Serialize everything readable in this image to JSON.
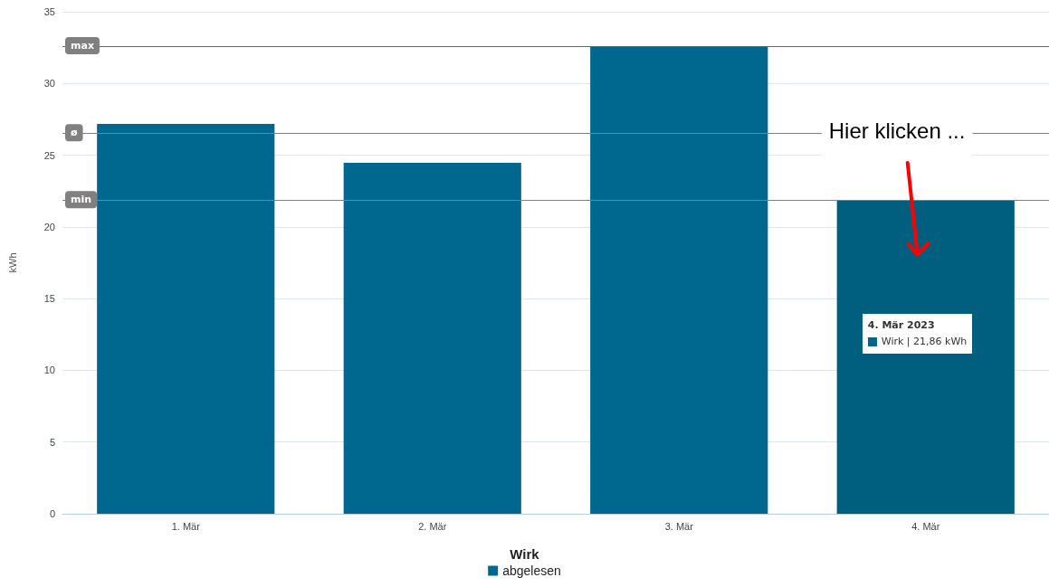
{
  "chart_data": {
    "type": "bar",
    "ylabel": "kWh",
    "legend_title": "Wirk",
    "legend": "bottom",
    "grid": "y",
    "categories": [
      "1. Mär",
      "2. Mär",
      "3. Mär",
      "4. Mär"
    ],
    "series": [
      {
        "name": "abgelesen",
        "color": "#00688f",
        "colors": [
          "#00688f",
          "#00688f",
          "#00688f",
          "#005f7f"
        ],
        "values": [
          27.18,
          24.47,
          32.6,
          21.86
        ]
      }
    ],
    "ylim": [
      0,
      35
    ],
    "yticks": [
      0,
      5,
      10,
      15,
      20,
      25,
      30,
      35
    ],
    "ref_lines": [
      {
        "axis": "y",
        "value": 32.6,
        "label": "max",
        "color": "#e03030"
      },
      {
        "axis": "y",
        "value": 26.53,
        "label": "ø",
        "color": "#808080"
      },
      {
        "axis": "y",
        "value": 21.86,
        "label": "min",
        "color": "#808080"
      }
    ],
    "annotations": [
      "Hier klicken ...",
      "4. Mär 2023",
      "Wirk | 21,86 kWh"
    ]
  }
}
